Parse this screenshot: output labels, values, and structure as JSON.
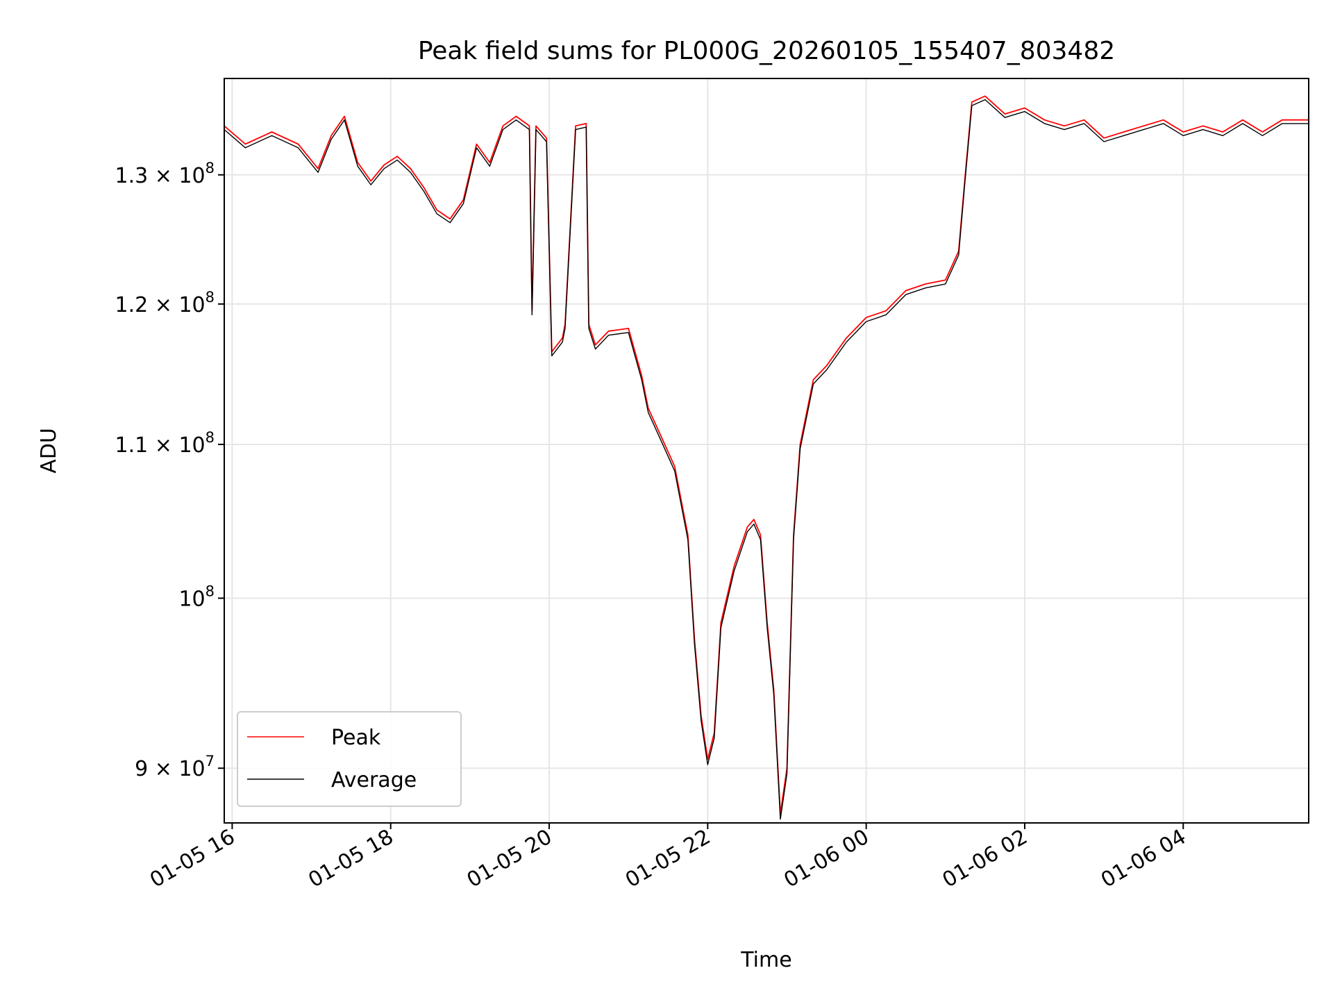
{
  "chart_data": {
    "type": "line",
    "title": "Peak field sums for PL000G_20260105_155407_803482",
    "xlabel": "Time",
    "ylabel": "ADU",
    "y_scale": "log",
    "ylim": [
      87000000,
      138000000
    ],
    "xlim": [
      "2026-01-05 15:54",
      "2026-01-06 05:35"
    ],
    "grid": true,
    "legend": {
      "placement": "lower left"
    },
    "x_ticks": [
      "01-05 16",
      "01-05 18",
      "01-05 20",
      "01-05 22",
      "01-06 00",
      "01-06 02",
      "01-06 04"
    ],
    "y_ticks": [
      {
        "value": 90000000,
        "mantissa": "9",
        "exponent": "7"
      },
      {
        "value": 100000000,
        "mantissa": "",
        "exponent": "8"
      },
      {
        "value": 110000000,
        "mantissa": "1.1",
        "exponent": "8"
      },
      {
        "value": 120000000,
        "mantissa": "1.2",
        "exponent": "8"
      },
      {
        "value": 130000000,
        "mantissa": "1.3",
        "exponent": "8"
      }
    ],
    "x": [
      "2026-01-05 15:54",
      "2026-01-05 16:10",
      "2026-01-05 16:30",
      "2026-01-05 16:50",
      "2026-01-05 17:05",
      "2026-01-05 17:15",
      "2026-01-05 17:25",
      "2026-01-05 17:35",
      "2026-01-05 17:45",
      "2026-01-05 17:55",
      "2026-01-05 18:05",
      "2026-01-05 18:15",
      "2026-01-05 18:25",
      "2026-01-05 18:35",
      "2026-01-05 18:45",
      "2026-01-05 18:55",
      "2026-01-05 19:05",
      "2026-01-05 19:15",
      "2026-01-05 19:25",
      "2026-01-05 19:35",
      "2026-01-05 19:45",
      "2026-01-05 19:47",
      "2026-01-05 19:50",
      "2026-01-05 19:58",
      "2026-01-05 20:02",
      "2026-01-05 20:10",
      "2026-01-05 20:12",
      "2026-01-05 20:20",
      "2026-01-05 20:28",
      "2026-01-05 20:30",
      "2026-01-05 20:35",
      "2026-01-05 20:45",
      "2026-01-05 21:00",
      "2026-01-05 21:10",
      "2026-01-05 21:15",
      "2026-01-05 21:25",
      "2026-01-05 21:35",
      "2026-01-05 21:45",
      "2026-01-05 21:50",
      "2026-01-05 21:55",
      "2026-01-05 22:00",
      "2026-01-05 22:05",
      "2026-01-05 22:10",
      "2026-01-05 22:20",
      "2026-01-05 22:30",
      "2026-01-05 22:35",
      "2026-01-05 22:40",
      "2026-01-05 22:45",
      "2026-01-05 22:50",
      "2026-01-05 22:55",
      "2026-01-05 23:00",
      "2026-01-05 23:05",
      "2026-01-05 23:10",
      "2026-01-05 23:20",
      "2026-01-05 23:30",
      "2026-01-05 23:45",
      "2026-01-06 00:00",
      "2026-01-06 00:15",
      "2026-01-06 00:30",
      "2026-01-06 00:45",
      "2026-01-06 01:00",
      "2026-01-06 01:10",
      "2026-01-06 01:15",
      "2026-01-06 01:20",
      "2026-01-06 01:30",
      "2026-01-06 01:45",
      "2026-01-06 02:00",
      "2026-01-06 02:15",
      "2026-01-06 02:30",
      "2026-01-06 02:45",
      "2026-01-06 03:00",
      "2026-01-06 03:15",
      "2026-01-06 03:30",
      "2026-01-06 03:45",
      "2026-01-06 04:00",
      "2026-01-06 04:15",
      "2026-01-06 04:30",
      "2026-01-06 04:45",
      "2026-01-06 05:00",
      "2026-01-06 05:15",
      "2026-01-06 05:35"
    ],
    "series": [
      {
        "name": "Peak",
        "color": "#ff0000",
        "values": [
          134000000,
          132500000,
          133500000,
          132500000,
          130500000,
          133200000,
          134800000,
          131000000,
          129500000,
          130800000,
          131500000,
          130500000,
          129000000,
          127200000,
          126500000,
          128000000,
          132500000,
          131000000,
          134000000,
          134800000,
          134000000,
          119500000,
          134000000,
          133000000,
          116500000,
          117500000,
          118500000,
          134000000,
          134200000,
          118500000,
          117000000,
          118000000,
          118200000,
          114800000,
          112500000,
          110500000,
          108500000,
          104000000,
          97500000,
          93000000,
          90500000,
          92000000,
          98500000,
          102000000,
          104500000,
          105000000,
          104000000,
          98500000,
          94500000,
          87500000,
          90000000,
          104000000,
          110000000,
          114500000,
          115500000,
          117500000,
          119000000,
          119500000,
          121000000,
          121500000,
          121800000,
          124000000,
          130000000,
          136000000,
          136500000,
          135000000,
          135500000,
          134500000,
          134000000,
          134500000,
          133000000,
          133500000,
          134000000,
          134500000,
          133500000,
          134000000,
          133500000,
          134500000,
          133500000,
          134500000,
          134500000
        ]
      },
      {
        "name": "Average",
        "color": "#000000",
        "values": [
          133700000,
          132200000,
          133200000,
          132200000,
          130200000,
          132900000,
          134500000,
          130700000,
          129200000,
          130500000,
          131200000,
          130200000,
          128700000,
          126900000,
          126200000,
          127700000,
          132200000,
          130700000,
          133700000,
          134500000,
          133700000,
          119200000,
          133700000,
          132700000,
          116200000,
          117200000,
          118200000,
          133700000,
          133900000,
          118200000,
          116700000,
          117700000,
          117900000,
          114500000,
          112200000,
          110200000,
          108200000,
          103700000,
          97200000,
          92700000,
          90200000,
          91700000,
          98200000,
          101700000,
          104200000,
          104700000,
          103700000,
          98200000,
          94200000,
          87200000,
          89700000,
          103700000,
          109700000,
          114200000,
          115200000,
          117200000,
          118700000,
          119200000,
          120700000,
          121200000,
          121500000,
          123700000,
          129700000,
          135700000,
          136200000,
          134700000,
          135200000,
          134200000,
          133700000,
          134200000,
          132700000,
          133200000,
          133700000,
          134200000,
          133200000,
          133700000,
          133200000,
          134200000,
          133200000,
          134200000,
          134200000
        ]
      }
    ]
  }
}
